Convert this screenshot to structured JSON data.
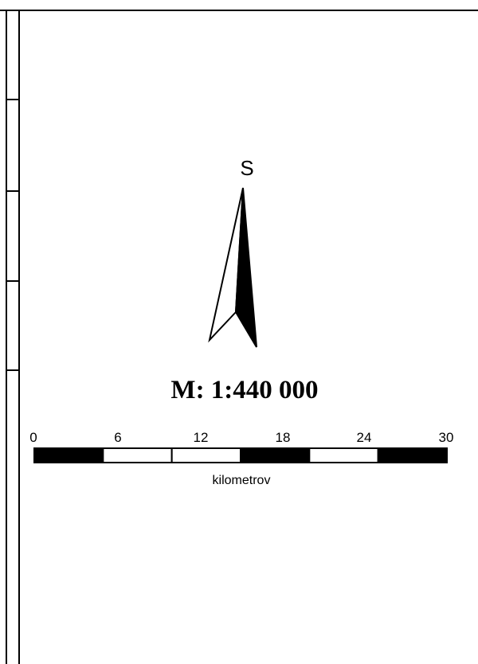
{
  "north_arrow": {
    "label": "S"
  },
  "scale": {
    "ratio_text": "M: 1:440 000",
    "unit": "kilometrov",
    "ticks": [
      "0",
      "6",
      "12",
      "18",
      "24",
      "30"
    ],
    "bar_pattern": [
      "black",
      "white",
      "white",
      "black",
      "white",
      "black"
    ]
  },
  "colors": {
    "ink": "#000000",
    "paper": "#ffffff"
  }
}
